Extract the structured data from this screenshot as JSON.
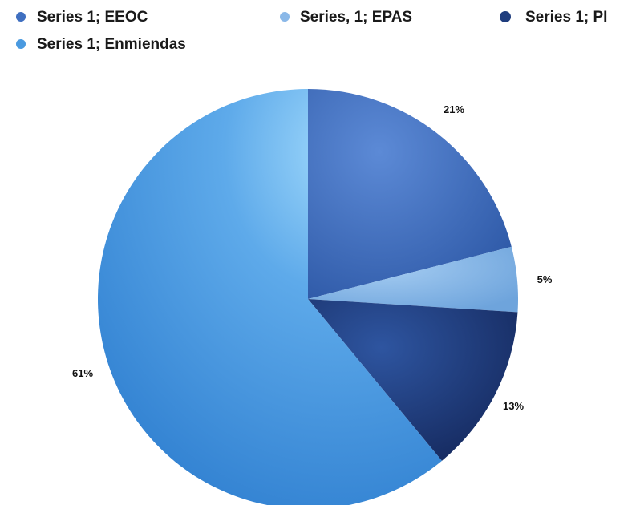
{
  "chart_data": {
    "type": "pie",
    "title": "",
    "series": [
      {
        "name": "Series 1",
        "values": [
          21,
          5,
          13,
          61
        ]
      }
    ],
    "categories": [
      "EEOC",
      "EPAS",
      "PI",
      "Enmiendas"
    ],
    "slices": [
      {
        "label": "Series 1; EEOC",
        "value": 21,
        "data_label": "21%",
        "color": "#3f6fc0"
      },
      {
        "label": "Series, 1; EPAS",
        "value": 5,
        "data_label": "5%",
        "color": "#8ab8e8"
      },
      {
        "label": "Series 1; PI",
        "value": 13,
        "data_label": "13%",
        "color": "#1f3d7d"
      },
      {
        "label": "Series 1; Enmiendas",
        "value": 61,
        "data_label": "61%",
        "color": "#4a9ae0"
      }
    ],
    "start_angle_deg": 0,
    "direction": "clockwise",
    "legend_position": "top"
  }
}
